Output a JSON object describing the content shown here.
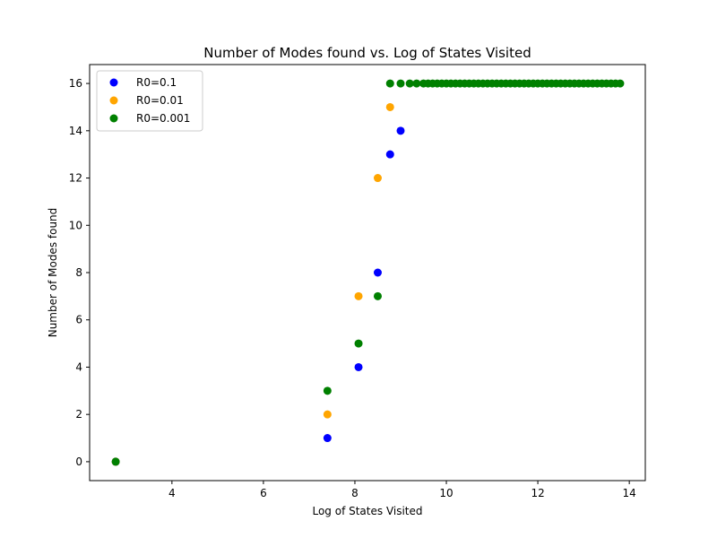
{
  "chart_data": {
    "type": "scatter",
    "title": "Number of Modes found vs. Log of States Visited",
    "xlabel": "Log of States Visited",
    "ylabel": "Number of Modes found",
    "xlim": [
      2.2,
      14.35
    ],
    "ylim": [
      -0.8,
      16.8
    ],
    "xticks": [
      4,
      6,
      8,
      10,
      12,
      14
    ],
    "yticks": [
      0,
      2,
      4,
      6,
      8,
      10,
      12,
      14,
      16
    ],
    "grid": false,
    "legend_position": "top-left",
    "series": [
      {
        "name": "R0=0.1",
        "color": "#0000ff",
        "points": [
          [
            2.77,
            0
          ],
          [
            7.4,
            1
          ],
          [
            8.08,
            4
          ],
          [
            8.5,
            8
          ],
          [
            8.77,
            13
          ],
          [
            9.0,
            14
          ]
        ]
      },
      {
        "name": "R0=0.01",
        "color": "#ffa500",
        "points": [
          [
            2.77,
            0
          ],
          [
            7.4,
            2
          ],
          [
            8.08,
            7
          ],
          [
            8.5,
            12
          ],
          [
            8.77,
            15
          ]
        ]
      },
      {
        "name": "R0=0.001",
        "color": "#008000",
        "points": [
          [
            2.77,
            0
          ],
          [
            7.4,
            3
          ],
          [
            8.08,
            5
          ],
          [
            8.5,
            7
          ],
          [
            8.77,
            16
          ],
          [
            9.0,
            16
          ],
          [
            9.2,
            16
          ],
          [
            9.35,
            16
          ],
          [
            9.5,
            16
          ],
          [
            9.6,
            16
          ],
          [
            9.7,
            16
          ],
          [
            9.8,
            16
          ],
          [
            9.9,
            16
          ],
          [
            10.0,
            16
          ],
          [
            10.1,
            16
          ],
          [
            10.2,
            16
          ],
          [
            10.3,
            16
          ],
          [
            10.4,
            16
          ],
          [
            10.5,
            16
          ],
          [
            10.6,
            16
          ],
          [
            10.7,
            16
          ],
          [
            10.8,
            16
          ],
          [
            10.9,
            16
          ],
          [
            11.0,
            16
          ],
          [
            11.1,
            16
          ],
          [
            11.2,
            16
          ],
          [
            11.3,
            16
          ],
          [
            11.4,
            16
          ],
          [
            11.5,
            16
          ],
          [
            11.6,
            16
          ],
          [
            11.7,
            16
          ],
          [
            11.8,
            16
          ],
          [
            11.9,
            16
          ],
          [
            12.0,
            16
          ],
          [
            12.1,
            16
          ],
          [
            12.2,
            16
          ],
          [
            12.3,
            16
          ],
          [
            12.4,
            16
          ],
          [
            12.5,
            16
          ],
          [
            12.6,
            16
          ],
          [
            12.7,
            16
          ],
          [
            12.8,
            16
          ],
          [
            12.9,
            16
          ],
          [
            13.0,
            16
          ],
          [
            13.1,
            16
          ],
          [
            13.2,
            16
          ],
          [
            13.3,
            16
          ],
          [
            13.4,
            16
          ],
          [
            13.5,
            16
          ],
          [
            13.6,
            16
          ],
          [
            13.7,
            16
          ],
          [
            13.8,
            16
          ]
        ]
      }
    ]
  }
}
